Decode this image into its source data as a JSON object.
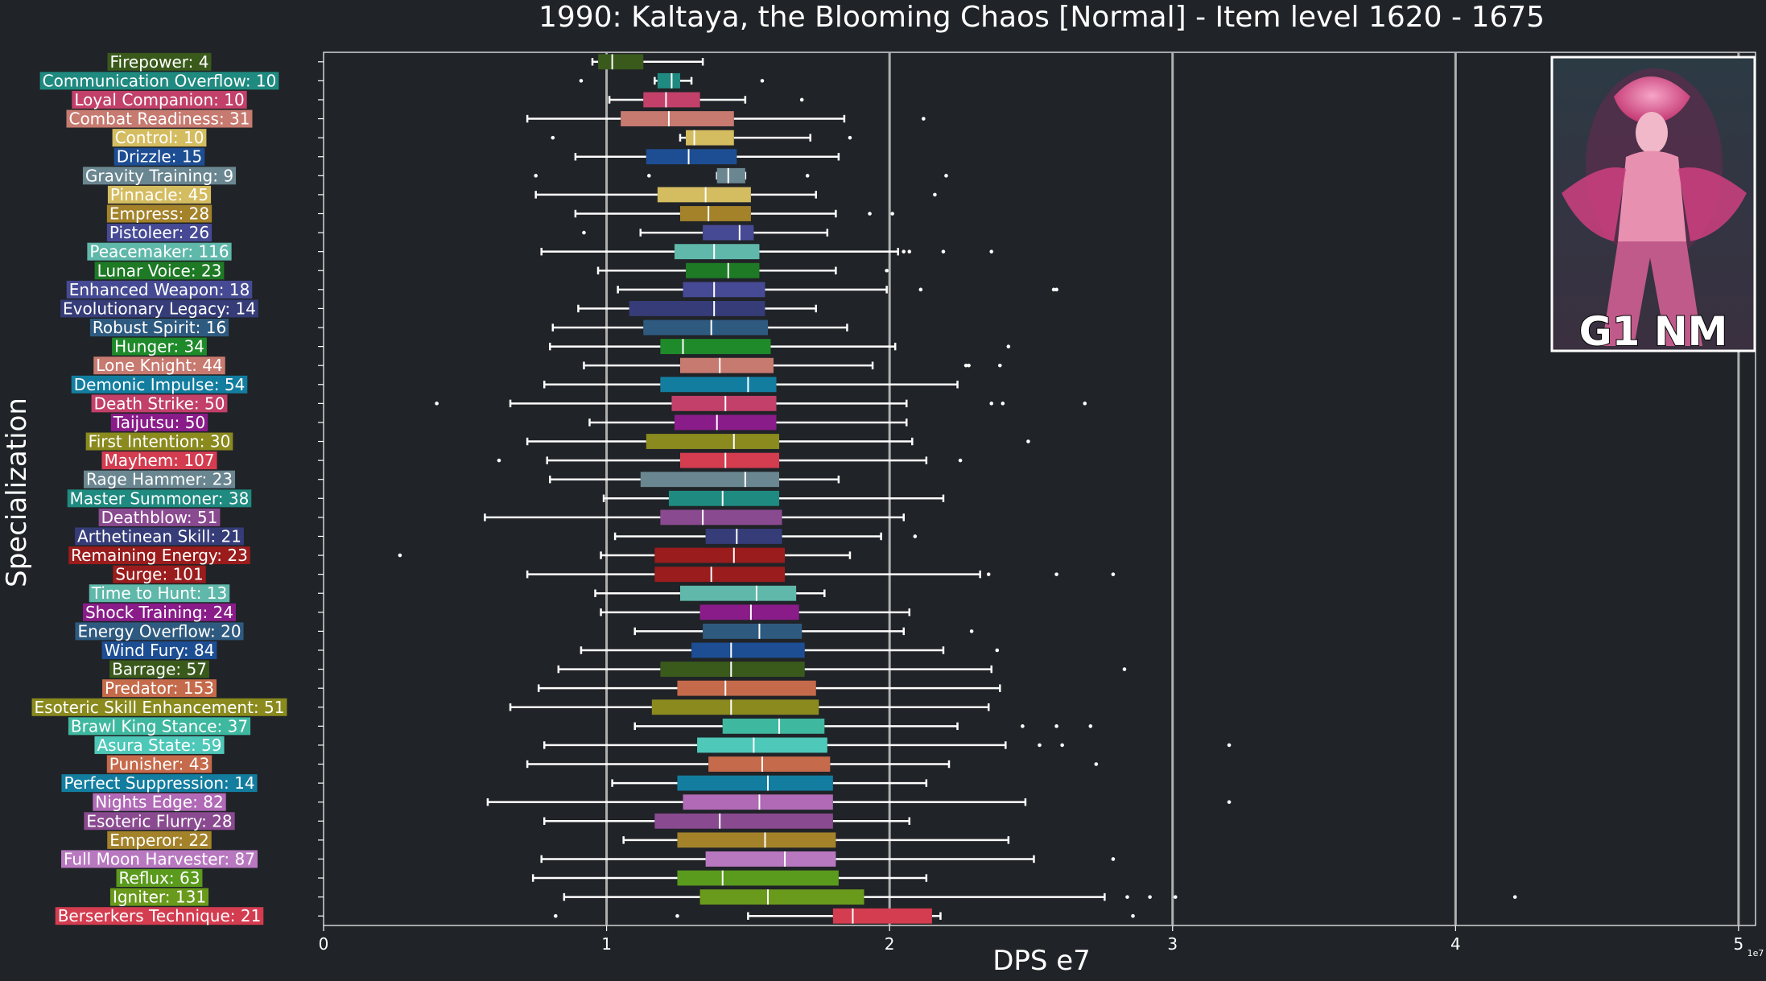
{
  "chart_data": {
    "type": "box",
    "orientation": "horizontal",
    "title": "1990: Kaltaya, the Blooming Chaos [Normal] - Item level 1620 - 1675",
    "xlabel": "DPS e7",
    "ylabel": "Specialization",
    "xlim": [
      0,
      50600000
    ],
    "xticks": [
      0,
      10000000,
      20000000,
      30000000,
      40000000,
      50000000
    ],
    "xtick_labels": [
      "0",
      "1",
      "2",
      "3",
      "4",
      "5"
    ],
    "x_exponent_label": "1e7",
    "grid": "vertical at major ticks",
    "legend": "none",
    "badge_text": "G1 NM",
    "series": [
      {
        "label": "Firepower: 4",
        "color": "#3a5a1c",
        "whislo": 9500000,
        "q1": 9700000,
        "med": 10200000,
        "q3": 11300000,
        "whishi": 13400000,
        "fliers": []
      },
      {
        "label": "Communication Overflow: 10",
        "color": "#1f8a80",
        "whislo": 11700000,
        "q1": 11800000,
        "med": 12300000,
        "q3": 12600000,
        "whishi": 13000000,
        "fliers": [
          9100000,
          15500000
        ]
      },
      {
        "label": "Loyal Companion: 10",
        "color": "#c2406a",
        "whislo": 10100000,
        "q1": 11300000,
        "med": 12100000,
        "q3": 13300000,
        "whishi": 14900000,
        "fliers": [
          16900000
        ]
      },
      {
        "label": "Combat Readiness: 31",
        "color": "#c77a70",
        "whislo": 7200000,
        "q1": 10500000,
        "med": 12200000,
        "q3": 14500000,
        "whishi": 18400000,
        "fliers": [
          21200000
        ]
      },
      {
        "label": "Control: 10",
        "color": "#d4bc60",
        "whislo": 12600000,
        "q1": 12800000,
        "med": 13100000,
        "q3": 14500000,
        "whishi": 17200000,
        "fliers": [
          8100000,
          18600000
        ]
      },
      {
        "label": "Drizzle: 15",
        "color": "#1d4e93",
        "whislo": 8900000,
        "q1": 11400000,
        "med": 12900000,
        "q3": 14600000,
        "whishi": 18200000,
        "fliers": []
      },
      {
        "label": "Gravity Training: 9",
        "color": "#6a8690",
        "whislo": 13900000,
        "q1": 13900000,
        "med": 14300000,
        "q3": 14900000,
        "whishi": 14900000,
        "fliers": [
          7500000,
          11500000,
          17100000,
          22000000
        ]
      },
      {
        "label": "Pinnacle: 45",
        "color": "#d4bc60",
        "whislo": 7500000,
        "q1": 11800000,
        "med": 13500000,
        "q3": 15100000,
        "whishi": 17400000,
        "fliers": [
          21600000
        ]
      },
      {
        "label": "Empress: 28",
        "color": "#a3822a",
        "whislo": 8900000,
        "q1": 12600000,
        "med": 13600000,
        "q3": 15100000,
        "whishi": 18100000,
        "fliers": [
          19300000,
          20100000
        ]
      },
      {
        "label": "Pistoleer: 26",
        "color": "#464a94",
        "whislo": 11200000,
        "q1": 13400000,
        "med": 14700000,
        "q3": 15200000,
        "whishi": 17800000,
        "fliers": [
          9200000
        ]
      },
      {
        "label": "Peacemaker: 116",
        "color": "#5fb8aa",
        "whislo": 7700000,
        "q1": 12400000,
        "med": 13800000,
        "q3": 15400000,
        "whishi": 20300000,
        "fliers": [
          20500000,
          20700000,
          21900000,
          23600000
        ]
      },
      {
        "label": "Lunar Voice: 23",
        "color": "#1e7a25",
        "whislo": 9700000,
        "q1": 12800000,
        "med": 14300000,
        "q3": 15400000,
        "whishi": 18100000,
        "fliers": [
          19900000
        ]
      },
      {
        "label": "Enhanced Weapon: 18",
        "color": "#464a94",
        "whislo": 10400000,
        "q1": 12700000,
        "med": 13800000,
        "q3": 15600000,
        "whishi": 19900000,
        "fliers": [
          21100000,
          25800000,
          25900000
        ]
      },
      {
        "label": "Evolutionary Legacy: 14",
        "color": "#353c78",
        "whislo": 9000000,
        "q1": 10800000,
        "med": 13800000,
        "q3": 15600000,
        "whishi": 17400000,
        "fliers": []
      },
      {
        "label": "Robust Spirit: 16",
        "color": "#2e5a80",
        "whislo": 8100000,
        "q1": 11300000,
        "med": 13700000,
        "q3": 15700000,
        "whishi": 18500000,
        "fliers": []
      },
      {
        "label": "Hunger: 34",
        "color": "#1e8a2a",
        "whislo": 8000000,
        "q1": 11900000,
        "med": 12700000,
        "q3": 15800000,
        "whishi": 20200000,
        "fliers": [
          24200000
        ]
      },
      {
        "label": "Lone Knight: 44",
        "color": "#c77a70",
        "whislo": 9200000,
        "q1": 12600000,
        "med": 14000000,
        "q3": 15900000,
        "whishi": 19400000,
        "fliers": [
          22700000,
          22800000,
          23900000
        ]
      },
      {
        "label": "Demonic Impulse: 54",
        "color": "#137da0",
        "whislo": 7800000,
        "q1": 11900000,
        "med": 15000000,
        "q3": 16000000,
        "whishi": 22400000,
        "fliers": []
      },
      {
        "label": "Death Strike: 50",
        "color": "#c2406a",
        "whislo": 6600000,
        "q1": 12300000,
        "med": 14200000,
        "q3": 16000000,
        "whishi": 20600000,
        "fliers": [
          4000000,
          23600000,
          24000000,
          26900000
        ]
      },
      {
        "label": "Taijutsu: 50",
        "color": "#8a1c8a",
        "whislo": 9400000,
        "q1": 12400000,
        "med": 13900000,
        "q3": 16000000,
        "whishi": 20600000,
        "fliers": []
      },
      {
        "label": "First Intention: 30",
        "color": "#8a8a1e",
        "whislo": 7200000,
        "q1": 11400000,
        "med": 14500000,
        "q3": 16100000,
        "whishi": 20800000,
        "fliers": [
          24900000
        ]
      },
      {
        "label": "Mayhem: 107",
        "color": "#d43c50",
        "whislo": 7900000,
        "q1": 12600000,
        "med": 14200000,
        "q3": 16100000,
        "whishi": 21300000,
        "fliers": [
          6200000,
          22500000
        ]
      },
      {
        "label": "Rage Hammer: 23",
        "color": "#6a8690",
        "whislo": 8000000,
        "q1": 11200000,
        "med": 14900000,
        "q3": 16100000,
        "whishi": 18200000,
        "fliers": []
      },
      {
        "label": "Master Summoner: 38",
        "color": "#1f8a80",
        "whislo": 9900000,
        "q1": 12200000,
        "med": 14100000,
        "q3": 16100000,
        "whishi": 21900000,
        "fliers": []
      },
      {
        "label": "Deathblow: 51",
        "color": "#8a4a90",
        "whislo": 5700000,
        "q1": 11900000,
        "med": 13400000,
        "q3": 16200000,
        "whishi": 20500000,
        "fliers": []
      },
      {
        "label": "Arthetinean Skill: 21",
        "color": "#353c78",
        "whislo": 10300000,
        "q1": 13500000,
        "med": 14600000,
        "q3": 16200000,
        "whishi": 19700000,
        "fliers": [
          20900000
        ]
      },
      {
        "label": "Remaining Energy: 23",
        "color": "#9a1c1c",
        "whislo": 9800000,
        "q1": 11700000,
        "med": 14500000,
        "q3": 16300000,
        "whishi": 18600000,
        "fliers": [
          2700000
        ]
      },
      {
        "label": "Surge: 101",
        "color": "#9a1c1c",
        "whislo": 7200000,
        "q1": 11700000,
        "med": 13700000,
        "q3": 16300000,
        "whishi": 23200000,
        "fliers": [
          23500000,
          25900000,
          27900000
        ]
      },
      {
        "label": "Time to Hunt: 13",
        "color": "#5fb8aa",
        "whislo": 9600000,
        "q1": 12600000,
        "med": 15300000,
        "q3": 16700000,
        "whishi": 17700000,
        "fliers": []
      },
      {
        "label": "Shock Training: 24",
        "color": "#8a1c8a",
        "whislo": 9800000,
        "q1": 13300000,
        "med": 15100000,
        "q3": 16800000,
        "whishi": 20700000,
        "fliers": []
      },
      {
        "label": "Energy Overflow: 20",
        "color": "#2e5a80",
        "whislo": 11000000,
        "q1": 13400000,
        "med": 15400000,
        "q3": 16900000,
        "whishi": 20500000,
        "fliers": [
          22900000
        ]
      },
      {
        "label": "Wind Fury: 84",
        "color": "#1d4e93",
        "whislo": 9100000,
        "q1": 13000000,
        "med": 14400000,
        "q3": 17000000,
        "whishi": 21900000,
        "fliers": [
          23800000
        ]
      },
      {
        "label": "Barrage: 57",
        "color": "#3a5a1c",
        "whislo": 8300000,
        "q1": 11900000,
        "med": 14400000,
        "q3": 17000000,
        "whishi": 23600000,
        "fliers": [
          28300000
        ]
      },
      {
        "label": "Predator: 153",
        "color": "#c56a4a",
        "whislo": 7600000,
        "q1": 12500000,
        "med": 14200000,
        "q3": 17400000,
        "whishi": 23900000,
        "fliers": []
      },
      {
        "label": "Esoteric Skill Enhancement: 51",
        "color": "#8a8a1e",
        "whislo": 6600000,
        "q1": 11600000,
        "med": 14400000,
        "q3": 17500000,
        "whishi": 23500000,
        "fliers": []
      },
      {
        "label": "Brawl King Stance: 37",
        "color": "#3fb8a0",
        "whislo": 11000000,
        "q1": 14100000,
        "med": 16100000,
        "q3": 17700000,
        "whishi": 22400000,
        "fliers": [
          24700000,
          25900000,
          27100000
        ]
      },
      {
        "label": "Asura State: 59",
        "color": "#4ec8b8",
        "whislo": 7800000,
        "q1": 13200000,
        "med": 15200000,
        "q3": 17800000,
        "whishi": 24100000,
        "fliers": [
          25300000,
          26100000,
          32000000
        ]
      },
      {
        "label": "Punisher: 43",
        "color": "#c56a4a",
        "whislo": 7200000,
        "q1": 13600000,
        "med": 15500000,
        "q3": 17900000,
        "whishi": 22100000,
        "fliers": [
          27300000
        ]
      },
      {
        "label": "Perfect Suppression: 14",
        "color": "#137da0",
        "whislo": 10200000,
        "q1": 12500000,
        "med": 15700000,
        "q3": 18000000,
        "whishi": 21300000,
        "fliers": []
      },
      {
        "label": "Nights Edge: 82",
        "color": "#b06ab6",
        "whislo": 5800000,
        "q1": 12700000,
        "med": 15400000,
        "q3": 18000000,
        "whishi": 24800000,
        "fliers": [
          32000000
        ]
      },
      {
        "label": "Esoteric Flurry: 28",
        "color": "#8a4a90",
        "whislo": 7800000,
        "q1": 11700000,
        "med": 14000000,
        "q3": 18000000,
        "whishi": 20700000,
        "fliers": []
      },
      {
        "label": "Emperor: 22",
        "color": "#a3822a",
        "whislo": 10600000,
        "q1": 12500000,
        "med": 15600000,
        "q3": 18100000,
        "whishi": 24200000,
        "fliers": []
      },
      {
        "label": "Full Moon Harvester: 87",
        "color": "#b878c0",
        "whislo": 7700000,
        "q1": 13500000,
        "med": 16300000,
        "q3": 18100000,
        "whishi": 25100000,
        "fliers": [
          27900000
        ]
      },
      {
        "label": "Reflux: 63",
        "color": "#5a9a1c",
        "whislo": 7400000,
        "q1": 12500000,
        "med": 14100000,
        "q3": 18200000,
        "whishi": 21300000,
        "fliers": []
      },
      {
        "label": "Igniter: 131",
        "color": "#6a9a1c",
        "whislo": 8500000,
        "q1": 13300000,
        "med": 15700000,
        "q3": 19100000,
        "whishi": 27600000,
        "fliers": [
          28400000,
          29200000,
          30100000,
          42100000
        ]
      },
      {
        "label": "Berserkers Technique: 21",
        "color": "#d43c50",
        "whislo": 15000000,
        "q1": 18000000,
        "med": 18700000,
        "q3": 21500000,
        "whishi": 21800000,
        "fliers": [
          8200000,
          12500000,
          28600000
        ]
      }
    ]
  }
}
